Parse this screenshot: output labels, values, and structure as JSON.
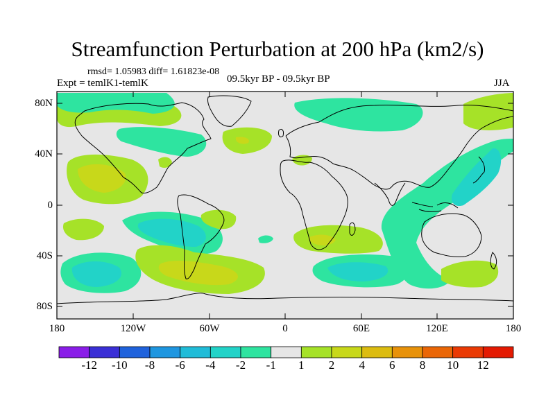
{
  "title": "Streamfunction Perturbation at 200 hPa (km2/s)",
  "stats": "rmsd= 1.05983 diff= 1.61823e-08",
  "experiment": "Expt = temlK1-temlK",
  "period": "09.5kyr BP - 09.5kyr BP",
  "season": "JJA",
  "lat_labels": [
    "80N",
    "40N",
    "0",
    "40S",
    "80S"
  ],
  "lon_labels": [
    "180",
    "120W",
    "60W",
    "0",
    "60E",
    "120E",
    "180"
  ],
  "colorbar": {
    "labels": [
      "-12",
      "-10",
      "-8",
      "-6",
      "-4",
      "-2",
      "-1",
      "1",
      "2",
      "4",
      "6",
      "8",
      "10",
      "12"
    ],
    "colors": [
      "#8a1de8",
      "#3a2fd6",
      "#1f62dc",
      "#1e96e0",
      "#20bcd8",
      "#22d3c8",
      "#2ee4a0",
      "#e6e6e6",
      "#a6e228",
      "#c8d81a",
      "#dcbc10",
      "#e8920a",
      "#ea6606",
      "#ea3a04",
      "#e41a02"
    ]
  },
  "map_colors": {
    "background": "#e6e6e6",
    "neg1": "#2ee4a0",
    "neg2": "#22d3c8",
    "pos1": "#a6e228",
    "pos2": "#c8d81a"
  }
}
